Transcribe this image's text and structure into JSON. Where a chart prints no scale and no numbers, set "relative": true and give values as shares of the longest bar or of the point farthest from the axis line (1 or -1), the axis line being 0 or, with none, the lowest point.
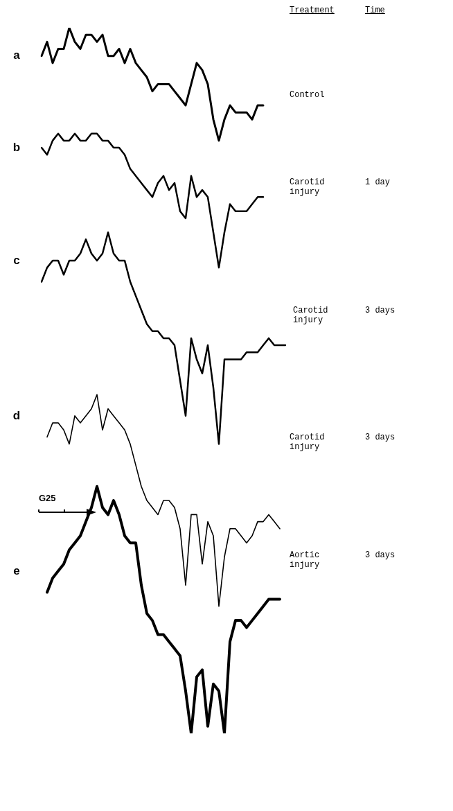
{
  "chart_data": {
    "type": "line",
    "relative": true,
    "legend": false,
    "marker": "none",
    "line_style": "solid",
    "categories": [
      null,
      null,
      null,
      null,
      null,
      null,
      null,
      null,
      null,
      null,
      null,
      null,
      null,
      null,
      null,
      null,
      null,
      null,
      null,
      null,
      null,
      null,
      null,
      null,
      null,
      null,
      null,
      null,
      null,
      null,
      null,
      null,
      null,
      null,
      null,
      null,
      null,
      null,
      null,
      null,
      null,
      null,
      null,
      null,
      null
    ],
    "series": [
      {
        "name": "a",
        "color": "#000000",
        "values": [
          0.96,
          0.98,
          0.95,
          0.97,
          0.97,
          1.0,
          0.98,
          0.97,
          0.99,
          0.99,
          0.98,
          0.99,
          0.96,
          0.96,
          0.97,
          0.95,
          0.97,
          0.95,
          0.94,
          0.93,
          0.91,
          0.92,
          0.92,
          0.92,
          0.91,
          0.9,
          0.89,
          0.92,
          0.95,
          0.94,
          0.92,
          0.87,
          0.84,
          0.87,
          0.89,
          0.88,
          0.88,
          0.88,
          0.87,
          0.89,
          0.89,
          null,
          null,
          null,
          null
        ]
      },
      {
        "name": "b",
        "color": "#000000",
        "values": [
          0.83,
          0.82,
          0.84,
          0.85,
          0.84,
          0.84,
          0.85,
          0.84,
          0.84,
          0.85,
          0.85,
          0.84,
          0.84,
          0.83,
          0.83,
          0.82,
          0.8,
          0.79,
          0.78,
          0.77,
          0.76,
          0.78,
          0.79,
          0.77,
          0.78,
          0.74,
          0.73,
          0.79,
          0.76,
          0.77,
          0.76,
          0.71,
          0.66,
          0.71,
          0.75,
          0.74,
          0.74,
          0.74,
          0.75,
          0.76,
          0.76,
          null,
          null,
          null,
          null
        ]
      },
      {
        "name": "c",
        "color": "#000000",
        "values": [
          0.64,
          0.66,
          0.67,
          0.67,
          0.65,
          0.67,
          0.67,
          0.68,
          0.7,
          0.68,
          0.67,
          0.68,
          0.71,
          0.68,
          0.67,
          0.67,
          0.64,
          0.62,
          0.6,
          0.58,
          0.57,
          0.57,
          0.56,
          0.56,
          0.55,
          0.5,
          0.45,
          0.56,
          0.53,
          0.51,
          0.55,
          0.49,
          0.41,
          0.53,
          0.53,
          0.53,
          0.53,
          0.54,
          0.54,
          0.54,
          0.55,
          0.56,
          0.55,
          0.55,
          0.55
        ]
      },
      {
        "name": "d",
        "color": "#000000",
        "values": [
          null,
          0.42,
          0.44,
          0.44,
          0.43,
          0.41,
          0.45,
          0.44,
          0.45,
          0.46,
          0.48,
          0.43,
          0.46,
          0.45,
          0.44,
          0.43,
          0.41,
          0.38,
          0.35,
          0.33,
          0.32,
          0.31,
          0.33,
          0.33,
          0.32,
          0.29,
          0.21,
          0.31,
          0.31,
          0.24,
          0.3,
          0.28,
          0.18,
          0.25,
          0.29,
          0.29,
          0.28,
          0.27,
          0.28,
          0.3,
          0.3,
          0.31,
          0.3,
          0.29,
          null
        ]
      },
      {
        "name": "e",
        "color": "#000000",
        "values": [
          null,
          0.2,
          0.22,
          0.23,
          0.24,
          0.26,
          0.27,
          0.28,
          0.3,
          0.32,
          0.35,
          0.32,
          0.31,
          0.33,
          0.31,
          0.28,
          0.27,
          0.27,
          0.21,
          0.17,
          0.16,
          0.14,
          0.14,
          0.13,
          0.12,
          0.11,
          0.06,
          0.0,
          0.08,
          0.09,
          0.01,
          0.07,
          0.06,
          0.0,
          0.13,
          0.16,
          0.16,
          0.15,
          0.16,
          0.17,
          0.18,
          0.19,
          0.19,
          0.19,
          null
        ]
      }
    ],
    "annotations": [
      "Treatment",
      "Time",
      "Control",
      "Carotid injury",
      "1 day",
      "Carotid injury",
      "3 days",
      "Carotid injury",
      "3 days",
      "Aortic injury",
      "3 days",
      "G25"
    ]
  }
}
